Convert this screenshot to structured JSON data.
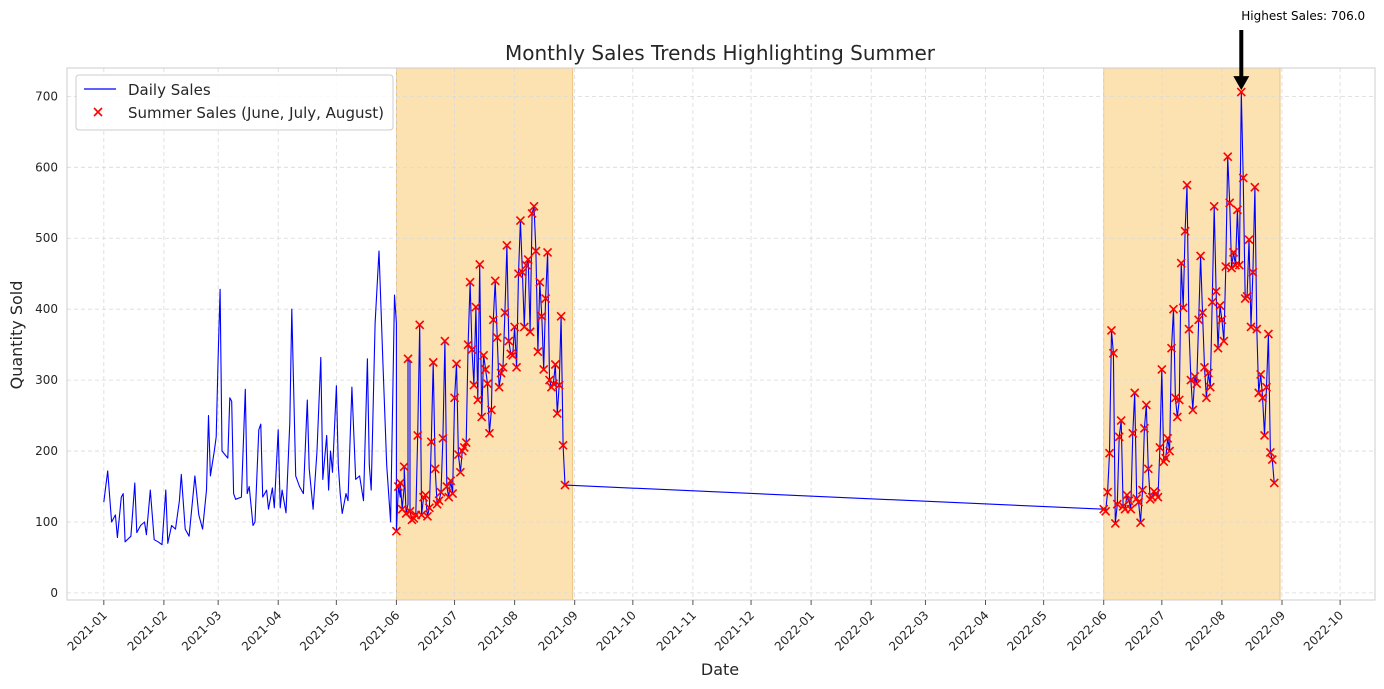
{
  "chart_data": {
    "type": "line",
    "title": "Monthly Sales Trends Highlighting Summer",
    "xlabel": "Date",
    "ylabel": "Quantity Sold",
    "x_ticks": [
      "2021-01",
      "2021-02",
      "2021-03",
      "2021-04",
      "2021-05",
      "2021-06",
      "2021-07",
      "2021-08",
      "2021-09",
      "2021-10",
      "2021-11",
      "2021-12",
      "2022-01",
      "2022-02",
      "2022-03",
      "2022-04",
      "2022-05",
      "2022-06",
      "2022-07",
      "2022-08",
      "2022-09",
      "2022-10"
    ],
    "y_ticks": [
      0,
      100,
      200,
      300,
      400,
      500,
      600,
      700
    ],
    "ylim": [
      -10,
      740
    ],
    "xlim": [
      "2020-12-13",
      "2022-10-19"
    ],
    "grid": true,
    "legend_position": "top-left",
    "highlight_periods": [
      {
        "start": "2021-06-01",
        "end": "2021-08-31"
      },
      {
        "start": "2022-06-01",
        "end": "2022-08-31"
      }
    ],
    "series": [
      {
        "name": "Daily Sales",
        "kind": "line",
        "color": "#0000ff",
        "points": [
          [
            "2021-01-01",
            128
          ],
          [
            "2021-01-03",
            172
          ],
          [
            "2021-01-05",
            100
          ],
          [
            "2021-01-07",
            110
          ],
          [
            "2021-01-08",
            78
          ],
          [
            "2021-01-10",
            135
          ],
          [
            "2021-01-11",
            140
          ],
          [
            "2021-01-12",
            72
          ],
          [
            "2021-01-15",
            80
          ],
          [
            "2021-01-17",
            155
          ],
          [
            "2021-01-18",
            85
          ],
          [
            "2021-01-20",
            95
          ],
          [
            "2021-01-22",
            100
          ],
          [
            "2021-01-23",
            82
          ],
          [
            "2021-01-25",
            145
          ],
          [
            "2021-01-27",
            75
          ],
          [
            "2021-01-29",
            72
          ],
          [
            "2021-01-31",
            68
          ],
          [
            "2021-02-02",
            145
          ],
          [
            "2021-02-03",
            70
          ],
          [
            "2021-02-05",
            95
          ],
          [
            "2021-02-07",
            90
          ],
          [
            "2021-02-09",
            130
          ],
          [
            "2021-02-10",
            167
          ],
          [
            "2021-02-12",
            90
          ],
          [
            "2021-02-14",
            80
          ],
          [
            "2021-02-17",
            165
          ],
          [
            "2021-02-19",
            110
          ],
          [
            "2021-02-21",
            90
          ],
          [
            "2021-02-23",
            145
          ],
          [
            "2021-02-24",
            250
          ],
          [
            "2021-02-25",
            165
          ],
          [
            "2021-02-27",
            200
          ],
          [
            "2021-02-28",
            220
          ],
          [
            "2021-03-01",
            330
          ],
          [
            "2021-03-02",
            428
          ],
          [
            "2021-03-03",
            200
          ],
          [
            "2021-03-06",
            190
          ],
          [
            "2021-03-07",
            275
          ],
          [
            "2021-03-08",
            270
          ],
          [
            "2021-03-09",
            140
          ],
          [
            "2021-03-10",
            132
          ],
          [
            "2021-03-13",
            135
          ],
          [
            "2021-03-15",
            287
          ],
          [
            "2021-03-16",
            140
          ],
          [
            "2021-03-17",
            150
          ],
          [
            "2021-03-19",
            95
          ],
          [
            "2021-03-20",
            100
          ],
          [
            "2021-03-22",
            230
          ],
          [
            "2021-03-23",
            238
          ],
          [
            "2021-03-24",
            135
          ],
          [
            "2021-03-26",
            145
          ],
          [
            "2021-03-27",
            118
          ],
          [
            "2021-03-29",
            148
          ],
          [
            "2021-03-30",
            120
          ],
          [
            "2021-04-01",
            230
          ],
          [
            "2021-04-02",
            120
          ],
          [
            "2021-04-03",
            145
          ],
          [
            "2021-04-05",
            113
          ],
          [
            "2021-04-07",
            240
          ],
          [
            "2021-04-08",
            400
          ],
          [
            "2021-04-10",
            165
          ],
          [
            "2021-04-12",
            150
          ],
          [
            "2021-04-14",
            140
          ],
          [
            "2021-04-16",
            272
          ],
          [
            "2021-04-17",
            175
          ],
          [
            "2021-04-19",
            118
          ],
          [
            "2021-04-21",
            200
          ],
          [
            "2021-04-23",
            332
          ],
          [
            "2021-04-24",
            160
          ],
          [
            "2021-04-26",
            222
          ],
          [
            "2021-04-27",
            145
          ],
          [
            "2021-04-28",
            200
          ],
          [
            "2021-04-29",
            170
          ],
          [
            "2021-05-01",
            292
          ],
          [
            "2021-05-02",
            180
          ],
          [
            "2021-05-03",
            140
          ],
          [
            "2021-05-04",
            112
          ],
          [
            "2021-05-06",
            140
          ],
          [
            "2021-05-07",
            130
          ],
          [
            "2021-05-09",
            290
          ],
          [
            "2021-05-11",
            160
          ],
          [
            "2021-05-13",
            165
          ],
          [
            "2021-05-15",
            130
          ],
          [
            "2021-05-17",
            330
          ],
          [
            "2021-05-18",
            180
          ],
          [
            "2021-05-19",
            145
          ],
          [
            "2021-05-21",
            380
          ],
          [
            "2021-05-23",
            482
          ],
          [
            "2021-05-25",
            325
          ],
          [
            "2021-05-27",
            180
          ],
          [
            "2021-05-29",
            100
          ],
          [
            "2021-05-31",
            420
          ],
          [
            "2021-06-01",
            380
          ],
          [
            "2021-06-03",
            135
          ],
          [
            "2021-06-05",
            150
          ],
          [
            "2021-06-07",
            125
          ],
          [
            "2021-06-08",
            325
          ]
        ]
      },
      {
        "name": "Summer Sales (June, July, August)",
        "kind": "scatter",
        "marker": "x",
        "color": "#ff0000",
        "points": [
          [
            "2021-06-01",
            87
          ],
          [
            "2021-06-02",
            150
          ],
          [
            "2021-06-03",
            155
          ],
          [
            "2021-06-04",
            118
          ],
          [
            "2021-06-05",
            178
          ],
          [
            "2021-06-06",
            112
          ],
          [
            "2021-06-07",
            330
          ],
          [
            "2021-06-08",
            115
          ],
          [
            "2021-06-09",
            103
          ],
          [
            "2021-06-10",
            105
          ],
          [
            "2021-06-11",
            110
          ],
          [
            "2021-06-12",
            222
          ],
          [
            "2021-06-13",
            378
          ],
          [
            "2021-06-14",
            110
          ],
          [
            "2021-06-15",
            135
          ],
          [
            "2021-06-16",
            138
          ],
          [
            "2021-06-17",
            108
          ],
          [
            "2021-06-18",
            120
          ],
          [
            "2021-06-19",
            213
          ],
          [
            "2021-06-20",
            325
          ],
          [
            "2021-06-21",
            175
          ],
          [
            "2021-06-22",
            125
          ],
          [
            "2021-06-23",
            130
          ],
          [
            "2021-06-24",
            142
          ],
          [
            "2021-06-25",
            218
          ],
          [
            "2021-06-26",
            355
          ],
          [
            "2021-06-27",
            150
          ],
          [
            "2021-06-28",
            135
          ],
          [
            "2021-06-29",
            158
          ],
          [
            "2021-06-30",
            140
          ],
          [
            "2021-07-01",
            275
          ],
          [
            "2021-07-02",
            323
          ],
          [
            "2021-07-03",
            195
          ],
          [
            "2021-07-04",
            170
          ],
          [
            "2021-07-05",
            200
          ],
          [
            "2021-07-06",
            205
          ],
          [
            "2021-07-07",
            212
          ],
          [
            "2021-07-08",
            350
          ],
          [
            "2021-07-09",
            438
          ],
          [
            "2021-07-10",
            343
          ],
          [
            "2021-07-11",
            293
          ],
          [
            "2021-07-12",
            403
          ],
          [
            "2021-07-13",
            272
          ],
          [
            "2021-07-14",
            463
          ],
          [
            "2021-07-15",
            248
          ],
          [
            "2021-07-16",
            335
          ],
          [
            "2021-07-17",
            315
          ],
          [
            "2021-07-18",
            295
          ],
          [
            "2021-07-19",
            225
          ],
          [
            "2021-07-20",
            258
          ],
          [
            "2021-07-21",
            385
          ],
          [
            "2021-07-22",
            440
          ],
          [
            "2021-07-23",
            360
          ],
          [
            "2021-07-24",
            290
          ],
          [
            "2021-07-25",
            310
          ],
          [
            "2021-07-26",
            318
          ],
          [
            "2021-07-27",
            395
          ],
          [
            "2021-07-28",
            490
          ],
          [
            "2021-07-29",
            355
          ],
          [
            "2021-07-30",
            337
          ],
          [
            "2021-07-31",
            335
          ],
          [
            "2021-08-01",
            375
          ],
          [
            "2021-08-02",
            318
          ],
          [
            "2021-08-03",
            450
          ],
          [
            "2021-08-04",
            525
          ],
          [
            "2021-08-05",
            452
          ],
          [
            "2021-08-06",
            375
          ],
          [
            "2021-08-07",
            462
          ],
          [
            "2021-08-08",
            470
          ],
          [
            "2021-08-09",
            368
          ],
          [
            "2021-08-10",
            535
          ],
          [
            "2021-08-11",
            545
          ],
          [
            "2021-08-12",
            482
          ],
          [
            "2021-08-13",
            340
          ],
          [
            "2021-08-14",
            438
          ],
          [
            "2021-08-15",
            390
          ],
          [
            "2021-08-16",
            315
          ],
          [
            "2021-08-17",
            415
          ],
          [
            "2021-08-18",
            480
          ],
          [
            "2021-08-19",
            300
          ],
          [
            "2021-08-20",
            290
          ],
          [
            "2021-08-21",
            295
          ],
          [
            "2021-08-22",
            322
          ],
          [
            "2021-08-23",
            253
          ],
          [
            "2021-08-24",
            293
          ],
          [
            "2021-08-25",
            390
          ],
          [
            "2021-08-26",
            208
          ],
          [
            "2021-08-27",
            152
          ],
          [
            "2022-06-01",
            118
          ],
          [
            "2022-06-02",
            115
          ],
          [
            "2022-06-03",
            142
          ],
          [
            "2022-06-04",
            197
          ],
          [
            "2022-06-05",
            370
          ],
          [
            "2022-06-06",
            338
          ],
          [
            "2022-06-07",
            98
          ],
          [
            "2022-06-08",
            125
          ],
          [
            "2022-06-09",
            220
          ],
          [
            "2022-06-10",
            243
          ],
          [
            "2022-06-11",
            122
          ],
          [
            "2022-06-12",
            118
          ],
          [
            "2022-06-13",
            138
          ],
          [
            "2022-06-14",
            130
          ],
          [
            "2022-06-15",
            118
          ],
          [
            "2022-06-16",
            225
          ],
          [
            "2022-06-17",
            282
          ],
          [
            "2022-06-18",
            133
          ],
          [
            "2022-06-19",
            128
          ],
          [
            "2022-06-20",
            99
          ],
          [
            "2022-06-21",
            145
          ],
          [
            "2022-06-22",
            232
          ],
          [
            "2022-06-23",
            265
          ],
          [
            "2022-06-24",
            175
          ],
          [
            "2022-06-25",
            132
          ],
          [
            "2022-06-26",
            135
          ],
          [
            "2022-06-27",
            143
          ],
          [
            "2022-06-28",
            140
          ],
          [
            "2022-06-29",
            135
          ],
          [
            "2022-06-30",
            205
          ],
          [
            "2022-07-01",
            315
          ],
          [
            "2022-07-02",
            185
          ],
          [
            "2022-07-03",
            190
          ],
          [
            "2022-07-04",
            218
          ],
          [
            "2022-07-05",
            200
          ],
          [
            "2022-07-06",
            345
          ],
          [
            "2022-07-07",
            400
          ],
          [
            "2022-07-08",
            275
          ],
          [
            "2022-07-09",
            248
          ],
          [
            "2022-07-10",
            272
          ],
          [
            "2022-07-11",
            465
          ],
          [
            "2022-07-12",
            402
          ],
          [
            "2022-07-13",
            510
          ],
          [
            "2022-07-14",
            575
          ],
          [
            "2022-07-15",
            372
          ],
          [
            "2022-07-16",
            300
          ],
          [
            "2022-07-17",
            258
          ],
          [
            "2022-07-18",
            305
          ],
          [
            "2022-07-19",
            295
          ],
          [
            "2022-07-20",
            385
          ],
          [
            "2022-07-21",
            475
          ],
          [
            "2022-07-22",
            395
          ],
          [
            "2022-07-23",
            318
          ],
          [
            "2022-07-24",
            275
          ],
          [
            "2022-07-25",
            310
          ],
          [
            "2022-07-26",
            290
          ],
          [
            "2022-07-27",
            410
          ],
          [
            "2022-07-28",
            545
          ],
          [
            "2022-07-29",
            425
          ],
          [
            "2022-07-30",
            345
          ],
          [
            "2022-07-31",
            405
          ],
          [
            "2022-08-01",
            385
          ],
          [
            "2022-08-02",
            355
          ],
          [
            "2022-08-03",
            460
          ],
          [
            "2022-08-04",
            615
          ],
          [
            "2022-08-05",
            550
          ],
          [
            "2022-08-06",
            458
          ],
          [
            "2022-08-07",
            480
          ],
          [
            "2022-08-08",
            462
          ],
          [
            "2022-08-09",
            540
          ],
          [
            "2022-08-10",
            462
          ],
          [
            "2022-08-11",
            706
          ],
          [
            "2022-08-12",
            585
          ],
          [
            "2022-08-13",
            415
          ],
          [
            "2022-08-14",
            418
          ],
          [
            "2022-08-15",
            498
          ],
          [
            "2022-08-16",
            375
          ],
          [
            "2022-08-17",
            452
          ],
          [
            "2022-08-18",
            572
          ],
          [
            "2022-08-19",
            372
          ],
          [
            "2022-08-20",
            282
          ],
          [
            "2022-08-21",
            308
          ],
          [
            "2022-08-22",
            275
          ],
          [
            "2022-08-23",
            222
          ],
          [
            "2022-08-24",
            290
          ],
          [
            "2022-08-25",
            365
          ],
          [
            "2022-08-26",
            198
          ],
          [
            "2022-08-27",
            188
          ],
          [
            "2022-08-28",
            155
          ]
        ]
      }
    ],
    "annotation": {
      "text": "Highest Sales: 706.0",
      "date": "2022-08-11",
      "value": 706
    },
    "legend": [
      "Daily Sales",
      "Summer Sales (June, July, August)"
    ]
  }
}
